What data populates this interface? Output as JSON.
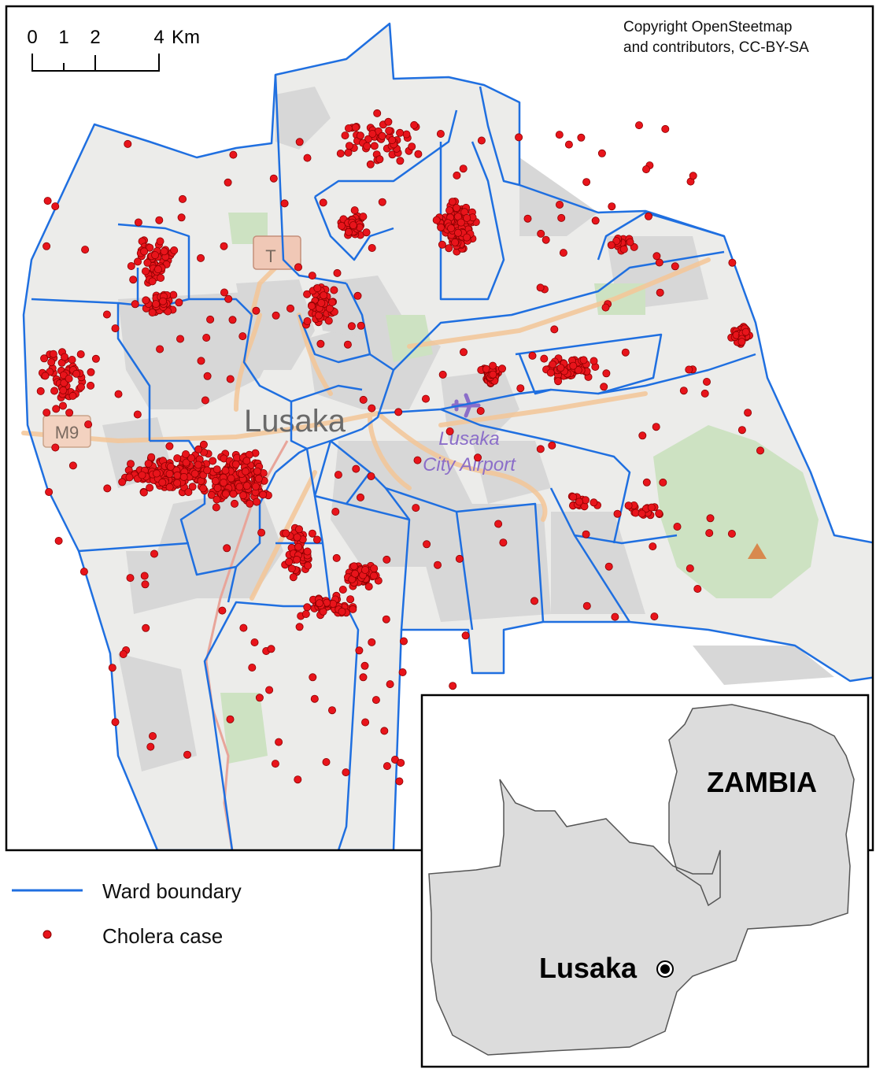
{
  "scale_bar": {
    "ticks": [
      "0",
      "1",
      "2",
      "4"
    ],
    "unit": "Km"
  },
  "copyright": {
    "line1": "Copyright OpenSteetmap",
    "line2": "and contributors, CC-BY-SA"
  },
  "basemap_labels": {
    "city": "Lusaka",
    "airport_line1": "Lusaka",
    "airport_line2": "City Airport",
    "road_m9": "M9",
    "road_t": "T"
  },
  "legend": {
    "ward_boundary": "Ward boundary",
    "cholera_case": "Cholera case"
  },
  "inset": {
    "country": "ZAMBIA",
    "city": "Lusaka"
  },
  "colors": {
    "ward_boundary": "#1f6fe0",
    "cholera_case": "#e8141b",
    "case_outline": "#8a0000",
    "basemap_bg": "#ececea",
    "urban": "#d9d9d9",
    "park": "#cfe3c4",
    "road": "#f5c99a",
    "inset_land": "#dcdcdc"
  },
  "case_clusters": [
    {
      "area": "north-west",
      "n": 110
    },
    {
      "area": "west-central",
      "n": 320
    },
    {
      "area": "west",
      "n": 60
    },
    {
      "area": "north-central",
      "n": 150
    },
    {
      "area": "north",
      "n": 120
    },
    {
      "area": "south-central",
      "n": 160
    },
    {
      "area": "east",
      "n": 140
    },
    {
      "area": "far-east",
      "n": 50
    },
    {
      "area": "scattered",
      "n": 220
    }
  ]
}
